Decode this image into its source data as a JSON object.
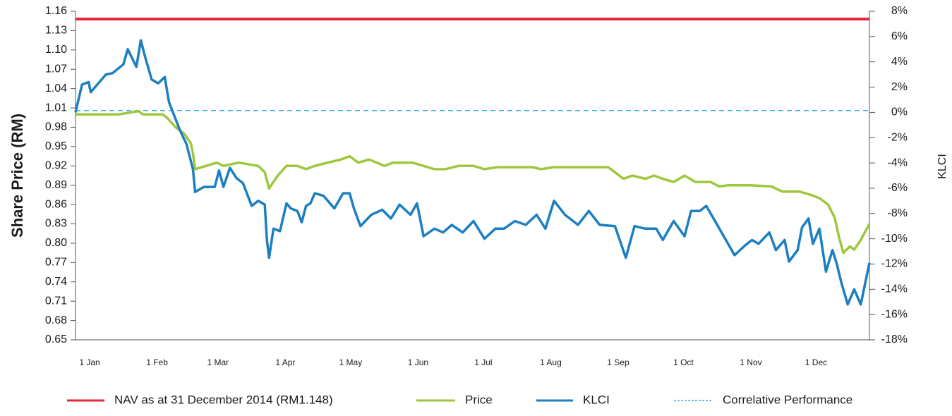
{
  "chart_data": {
    "type": "line",
    "y_label": "Share Price (RM)",
    "y2_label": "KLCI",
    "xlim": [
      0,
      365
    ],
    "xticks": [
      {
        "value": 0,
        "label": "1 Jan"
      },
      {
        "value": 31,
        "label": "1 Feb"
      },
      {
        "value": 59,
        "label": "1 Mar"
      },
      {
        "value": 90,
        "label": "1 Apr"
      },
      {
        "value": 120,
        "label": "1 May"
      },
      {
        "value": 151,
        "label": "1 Jun"
      },
      {
        "value": 181,
        "label": "1 Jul"
      },
      {
        "value": 212,
        "label": "1 Aug"
      },
      {
        "value": 243,
        "label": "1 Sep"
      },
      {
        "value": 273,
        "label": "1 Oct"
      },
      {
        "value": 304,
        "label": "1 Nov"
      },
      {
        "value": 334,
        "label": "1 Dec"
      }
    ],
    "ylim": [
      0.65,
      1.16
    ],
    "yticks": [
      0.65,
      0.68,
      0.71,
      0.74,
      0.77,
      {
        "value": 0.8,
        "label": "0.80"
      },
      0.83,
      0.86,
      0.89,
      0.92,
      0.95,
      0.98,
      1.01,
      1.04,
      1.07,
      {
        "value": 1.1,
        "label": "1.10"
      },
      1.13,
      1.16
    ],
    "y2lim": [
      -18,
      8
    ],
    "y2ticks": [
      {
        "value": -18,
        "label": "-18%"
      },
      {
        "value": -16,
        "label": "-16%"
      },
      {
        "value": -14,
        "label": "-14%"
      },
      {
        "value": -12,
        "label": "-12%"
      },
      {
        "value": -10,
        "label": "-10%"
      },
      {
        "value": -8,
        "label": "-8%"
      },
      {
        "value": -6,
        "label": "-6%"
      },
      {
        "value": -4,
        "label": "-4%"
      },
      {
        "value": -2,
        "label": "-2%"
      },
      {
        "value": 0,
        "label": "0%"
      },
      {
        "value": 2,
        "label": "2%"
      },
      {
        "value": 4,
        "label": "4%"
      },
      {
        "value": 6,
        "label": "6%"
      },
      {
        "value": 8,
        "label": "8%"
      }
    ],
    "reference_lines": [
      {
        "name": "NAV as at 31 December 2014 (RM1.148)",
        "value": 1.148,
        "color": "#e3283c",
        "style": "solid"
      },
      {
        "name": "Correlative Performance",
        "value": 1.006,
        "color": "#3aaee0",
        "style": "dashed"
      }
    ],
    "series": [
      {
        "name": "Price",
        "color": "#9dc73c",
        "axis": "y",
        "x": [
          0,
          10,
          20,
          29,
          31,
          40,
          42,
          46,
          50,
          53,
          54,
          55,
          60,
          65,
          68,
          75,
          84,
          87,
          89,
          93,
          97,
          102,
          106,
          110,
          116,
          122,
          126,
          130,
          135,
          142,
          146,
          155,
          160,
          165,
          170,
          176,
          183,
          188,
          194,
          210,
          214,
          220,
          245,
          248,
          252,
          256,
          262,
          266,
          270,
          275,
          280,
          285,
          292,
          296,
          300,
          310,
          320,
          325,
          333,
          338,
          342,
          346,
          349,
          351,
          353,
          356,
          358,
          361,
          365
        ],
        "values": [
          1.0,
          1.0,
          1.0,
          1.005,
          1.0,
          1.0,
          0.995,
          0.98,
          0.97,
          0.955,
          0.94,
          0.915,
          0.92,
          0.925,
          0.92,
          0.925,
          0.92,
          0.91,
          0.885,
          0.905,
          0.92,
          0.92,
          0.915,
          0.92,
          0.925,
          0.93,
          0.935,
          0.925,
          0.93,
          0.92,
          0.925,
          0.925,
          0.92,
          0.915,
          0.915,
          0.92,
          0.92,
          0.915,
          0.918,
          0.918,
          0.915,
          0.918,
          0.918,
          0.91,
          0.9,
          0.905,
          0.9,
          0.905,
          0.9,
          0.895,
          0.905,
          0.895,
          0.895,
          0.888,
          0.89,
          0.89,
          0.888,
          0.88,
          0.88,
          0.875,
          0.87,
          0.86,
          0.84,
          0.81,
          0.785,
          0.795,
          0.79,
          0.805,
          0.83
        ]
      },
      {
        "name": "KLCI",
        "color": "#1c7fc0",
        "axis": "y2",
        "x": [
          0,
          3,
          6,
          7,
          11,
          14,
          17,
          22,
          24,
          28,
          30,
          32,
          35,
          38,
          41,
          43,
          48,
          51,
          54,
          55,
          59,
          64,
          66,
          68,
          71,
          74,
          77,
          81,
          84,
          87,
          88,
          89,
          91,
          94,
          97,
          99,
          102,
          104,
          106,
          108,
          110,
          114,
          116,
          119,
          123,
          126,
          128,
          131,
          136,
          141,
          145,
          149,
          154,
          157,
          160,
          165,
          169,
          173,
          178,
          183,
          188,
          193,
          197,
          202,
          207,
          212,
          216,
          220,
          225,
          231,
          236,
          241,
          248,
          253,
          257,
          262,
          267,
          270,
          275,
          280,
          283,
          287,
          290,
          293,
          298,
          303,
          308,
          311,
          314,
          319,
          322,
          326,
          328,
          332,
          334,
          337,
          339,
          342,
          345,
          348,
          350,
          352,
          355,
          358,
          361,
          365
        ],
        "values": [
          0,
          2.2,
          2.4,
          1.6,
          2.4,
          3.0,
          3.1,
          3.8,
          5.0,
          3.6,
          5.7,
          4.4,
          2.6,
          2.3,
          2.8,
          0.8,
          -1.4,
          -2.5,
          -4.5,
          -6.3,
          -5.9,
          -5.9,
          -4.6,
          -5.9,
          -4.4,
          -5.2,
          -5.6,
          -7.4,
          -7.0,
          -7.3,
          -10.1,
          -11.5,
          -9.2,
          -9.4,
          -7.2,
          -7.6,
          -7.8,
          -8.7,
          -7.4,
          -7.2,
          -6.4,
          -6.6,
          -7.0,
          -7.6,
          -6.4,
          -6.4,
          -7.6,
          -9.0,
          -8.1,
          -7.7,
          -8.4,
          -7.3,
          -8.1,
          -7.2,
          -9.8,
          -9.2,
          -9.5,
          -8.9,
          -9.5,
          -8.6,
          -10.0,
          -9.2,
          -9.2,
          -8.6,
          -8.9,
          -8.1,
          -9.2,
          -7.0,
          -8.1,
          -8.9,
          -7.8,
          -8.9,
          -9.0,
          -11.5,
          -9.0,
          -9.2,
          -9.2,
          -10.1,
          -8.6,
          -9.8,
          -7.8,
          -7.8,
          -7.4,
          -8.3,
          -9.8,
          -11.3,
          -10.5,
          -10.1,
          -10.4,
          -9.5,
          -10.9,
          -10.1,
          -11.8,
          -10.9,
          -9.1,
          -8.4,
          -10.4,
          -9.2,
          -12.6,
          -10.9,
          -12.0,
          -13.4,
          -15.2,
          -14.0,
          -15.2,
          -11.9
        ]
      }
    ]
  }
}
